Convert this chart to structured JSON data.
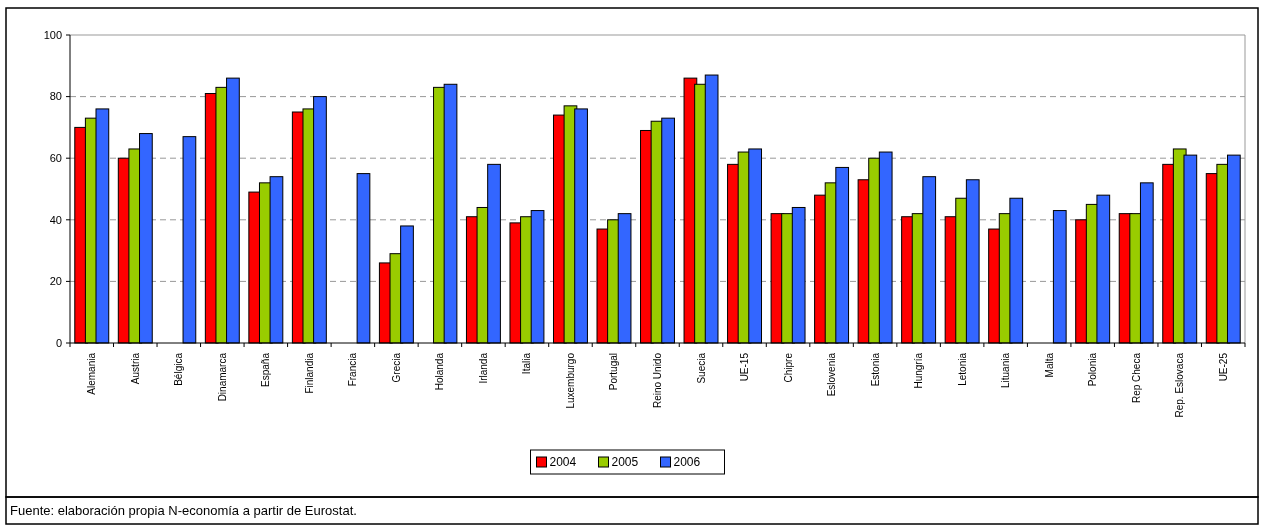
{
  "chart_data": {
    "type": "bar",
    "categories": [
      "Alemania",
      "Austria",
      "Bélgica",
      "Dinamarca",
      "España",
      "Finlandia",
      "Francia",
      "Grecia",
      "Holanda",
      "Irlanda",
      "Italia",
      "Luxemburgo",
      "Portugal",
      "Reino Unido",
      "Suecia",
      "UE-15",
      "Chipre",
      "Eslovenia",
      "Estonia",
      "Hungría",
      "Letonia",
      "Lituania",
      "Malta",
      "Polonia",
      "Rep Checa",
      "Rep. Eslovaca",
      "UE-25"
    ],
    "series": [
      {
        "name": "2004",
        "color": "#ff0000",
        "values": [
          70,
          60,
          null,
          81,
          49,
          75,
          null,
          26,
          null,
          41,
          39,
          74,
          37,
          69,
          86,
          58,
          42,
          48,
          53,
          41,
          41,
          37,
          null,
          40,
          42,
          58,
          55
        ]
      },
      {
        "name": "2005",
        "color": "#99cc00",
        "values": [
          73,
          63,
          null,
          83,
          52,
          76,
          null,
          29,
          83,
          44,
          41,
          77,
          40,
          72,
          84,
          62,
          42,
          52,
          60,
          42,
          47,
          42,
          null,
          45,
          42,
          63,
          58
        ]
      },
      {
        "name": "2006",
        "color": "#3366ff",
        "values": [
          76,
          68,
          67,
          86,
          54,
          80,
          55,
          38,
          84,
          58,
          43,
          76,
          42,
          73,
          87,
          63,
          44,
          57,
          62,
          54,
          53,
          47,
          43,
          48,
          52,
          61,
          61
        ]
      }
    ],
    "ylim": [
      0,
      100
    ],
    "yticks": [
      0,
      20,
      40,
      60,
      80,
      100
    ],
    "grid": "y",
    "legend": "bottom",
    "annotations": [
      "Fuente: elaboración propia N-economía a partir de Eurostat."
    ]
  }
}
